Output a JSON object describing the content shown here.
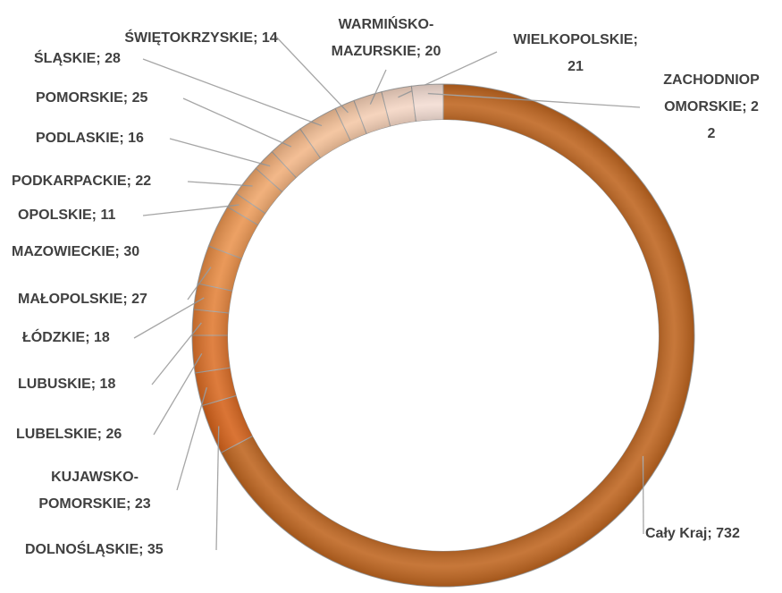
{
  "chart_data": {
    "type": "doughnut",
    "categories": [
      "Cały Kraj",
      "DOLNOŚLĄSKIE",
      "KUJAWSKO-POMORSKIE",
      "LUBELSKIE",
      "LUBUSKIE",
      "ŁÓDZKIE",
      "MAŁOPOLSKIE",
      "MAZOWIECKIE",
      "OPOLSKIE",
      "PODKARPACKIE",
      "PODLASKIE",
      "POMORSKIE",
      "ŚLĄSKIE",
      "ŚWIĘTOKRZYSKIE",
      "WARMIŃSKO-MAZURSKIE",
      "WIELKOPOLSKIE",
      "ZACHODNIOPOMORSKIE"
    ],
    "values": [
      732,
      35,
      23,
      26,
      18,
      18,
      27,
      30,
      11,
      22,
      16,
      25,
      28,
      14,
      20,
      21,
      22
    ],
    "value_labels": [
      "Cały Kraj; 732",
      "DOLNOŚLĄSKIE; 35",
      "KUJAWSKO-POMORSKIE; 23",
      "LUBELSKIE; 26",
      "LUBUSKIE; 18",
      "ŁÓDZKIE; 18",
      "MAŁOPOLSKIE; 27",
      "MAZOWIECKIE; 30",
      "OPOLSKIE; 11",
      "PODKARPACKIE; 22",
      "PODLASKIE; 16",
      "POMORSKIE; 25",
      "ŚLĄSKIE; 28",
      "ŚWIĘTOKRZYSKIE; 14",
      "WARMIŃSKO-MAZURSKIE; 20",
      "WIELKOPOLSKIE; 21",
      "ZACHODNIOPOMORSKIE; 22"
    ],
    "colors": [
      "#bf651f",
      "#d5621a",
      "#d96a22",
      "#dc712a",
      "#e07a31",
      "#e3823a",
      "#e78b43",
      "#ea944f",
      "#ed9d5c",
      "#efa66a",
      "#f1ae79",
      "#f2b687",
      "#f3bf96",
      "#f4c7a5",
      "#f4ceb4",
      "#f4d5c3",
      "#f3dcd2"
    ]
  }
}
